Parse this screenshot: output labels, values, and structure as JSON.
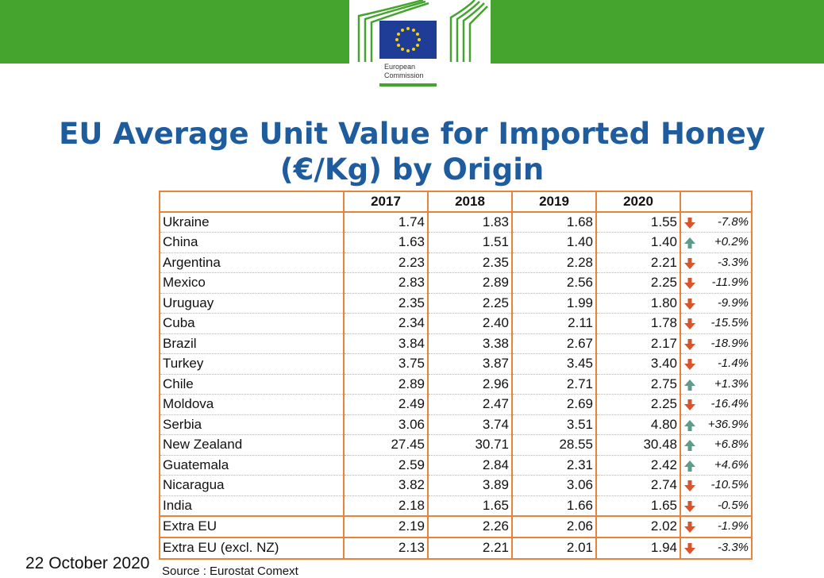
{
  "header": {
    "logo_line1": "European",
    "logo_line2": "Commission",
    "brand_color": "#44a42d"
  },
  "title_line1": "EU Average Unit Value for Imported Honey",
  "title_line2": "(€/Kg) by Origin",
  "table": {
    "columns": [
      "",
      "2017",
      "2018",
      "2019",
      "2020",
      ""
    ],
    "rows": [
      {
        "country": "Ukraine",
        "v2017": "1.74",
        "v2018": "1.83",
        "v2019": "1.68",
        "v2020": "1.55",
        "change": "-7.8%",
        "trend": "down"
      },
      {
        "country": "China",
        "v2017": "1.63",
        "v2018": "1.51",
        "v2019": "1.40",
        "v2020": "1.40",
        "change": "+0.2%",
        "trend": "up"
      },
      {
        "country": "Argentina",
        "v2017": "2.23",
        "v2018": "2.35",
        "v2019": "2.28",
        "v2020": "2.21",
        "change": "-3.3%",
        "trend": "down"
      },
      {
        "country": "Mexico",
        "v2017": "2.83",
        "v2018": "2.89",
        "v2019": "2.56",
        "v2020": "2.25",
        "change": "-11.9%",
        "trend": "down"
      },
      {
        "country": "Uruguay",
        "v2017": "2.35",
        "v2018": "2.25",
        "v2019": "1.99",
        "v2020": "1.80",
        "change": "-9.9%",
        "trend": "down"
      },
      {
        "country": "Cuba",
        "v2017": "2.34",
        "v2018": "2.40",
        "v2019": "2.11",
        "v2020": "1.78",
        "change": "-15.5%",
        "trend": "down"
      },
      {
        "country": "Brazil",
        "v2017": "3.84",
        "v2018": "3.38",
        "v2019": "2.67",
        "v2020": "2.17",
        "change": "-18.9%",
        "trend": "down"
      },
      {
        "country": "Turkey",
        "v2017": "3.75",
        "v2018": "3.87",
        "v2019": "3.45",
        "v2020": "3.40",
        "change": "-1.4%",
        "trend": "down"
      },
      {
        "country": "Chile",
        "v2017": "2.89",
        "v2018": "2.96",
        "v2019": "2.71",
        "v2020": "2.75",
        "change": "+1.3%",
        "trend": "up"
      },
      {
        "country": "Moldova",
        "v2017": "2.49",
        "v2018": "2.47",
        "v2019": "2.69",
        "v2020": "2.25",
        "change": "-16.4%",
        "trend": "down"
      },
      {
        "country": "Serbia",
        "v2017": "3.06",
        "v2018": "3.74",
        "v2019": "3.51",
        "v2020": "4.80",
        "change": "+36.9%",
        "trend": "up"
      },
      {
        "country": "New Zealand",
        "v2017": "27.45",
        "v2018": "30.71",
        "v2019": "28.55",
        "v2020": "30.48",
        "change": "+6.8%",
        "trend": "up"
      },
      {
        "country": "Guatemala",
        "v2017": "2.59",
        "v2018": "2.84",
        "v2019": "2.31",
        "v2020": "2.42",
        "change": "+4.6%",
        "trend": "up"
      },
      {
        "country": "Nicaragua",
        "v2017": "3.82",
        "v2018": "3.89",
        "v2019": "3.06",
        "v2020": "2.74",
        "change": "-10.5%",
        "trend": "down"
      },
      {
        "country": "India",
        "v2017": "2.18",
        "v2018": "1.65",
        "v2019": "1.66",
        "v2020": "1.65",
        "change": "-0.5%",
        "trend": "down"
      }
    ],
    "totals": [
      {
        "country": "Extra EU",
        "v2017": "2.19",
        "v2018": "2.26",
        "v2019": "2.06",
        "v2020": "2.02",
        "change": "-1.9%",
        "trend": "down"
      },
      {
        "country": "Extra EU (excl. NZ)",
        "v2017": "2.13",
        "v2018": "2.21",
        "v2019": "2.01",
        "v2020": "1.94",
        "change": "-3.3%",
        "trend": "down"
      }
    ],
    "colors": {
      "border": "#e8833a",
      "down_arrow": "#d9542b",
      "up_arrow": "#5e9b8a"
    }
  },
  "footer": {
    "date": "22 October  2020",
    "source": "Source : Eurostat Comext"
  }
}
